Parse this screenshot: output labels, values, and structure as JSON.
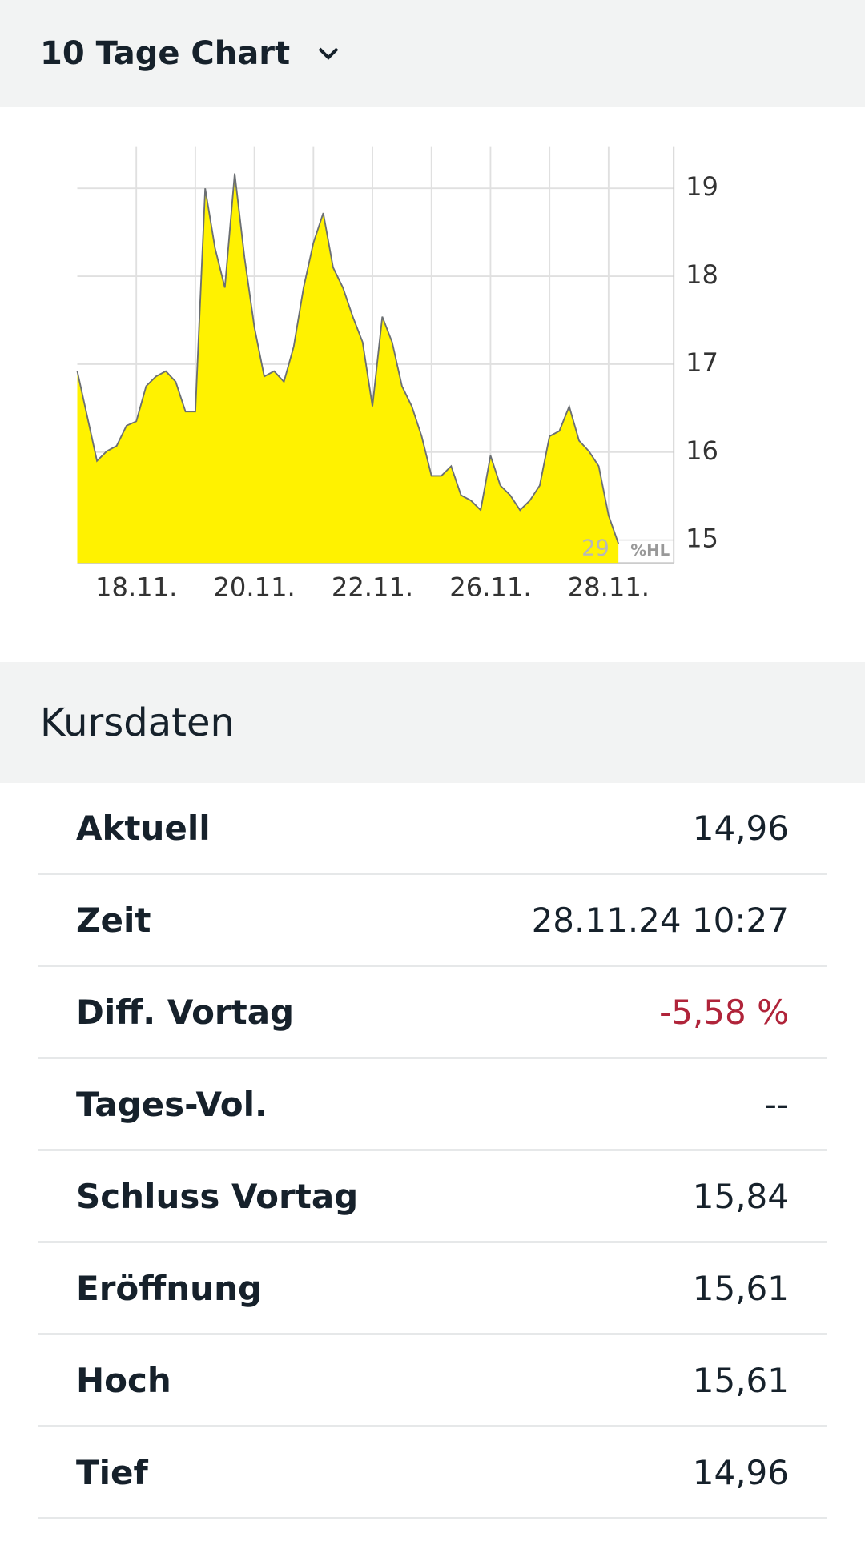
{
  "header": {
    "title": "10 Tage Chart"
  },
  "chart_data": {
    "type": "area",
    "categories": [
      null,
      null,
      null,
      null,
      null,
      null,
      "18.11.",
      null,
      null,
      null,
      null,
      null,
      null,
      null,
      null,
      null,
      null,
      null,
      "20.11.",
      null,
      null,
      null,
      null,
      null,
      null,
      null,
      null,
      null,
      null,
      null,
      "22.11.",
      null,
      null,
      null,
      null,
      null,
      null,
      null,
      null,
      null,
      null,
      null,
      "26.11.",
      null,
      null,
      null,
      null,
      null,
      null,
      null,
      null,
      null,
      null,
      null,
      "28.11.",
      null
    ],
    "values": [
      16.92,
      16.41,
      15.9,
      16.01,
      16.07,
      16.3,
      16.35,
      16.75,
      16.86,
      16.92,
      16.8,
      16.46,
      16.46,
      19.0,
      18.32,
      17.87,
      19.17,
      18.21,
      17.42,
      16.86,
      16.92,
      16.8,
      17.2,
      17.87,
      18.38,
      18.72,
      18.1,
      17.87,
      17.54,
      17.25,
      16.52,
      17.54,
      17.25,
      16.75,
      16.52,
      16.18,
      15.73,
      15.73,
      15.84,
      15.51,
      15.45,
      15.34,
      15.96,
      15.62,
      15.51,
      15.34,
      15.45,
      15.62,
      16.18,
      16.24,
      16.52,
      16.13,
      16.01,
      15.84,
      15.28,
      14.96
    ],
    "color": "#fff200",
    "edge_color": "#6b6f73",
    "ylim": [
      14.74,
      19.47
    ],
    "yticks": [
      15,
      16,
      17,
      18,
      19
    ],
    "grid": true,
    "watermark": [
      "29",
      "%HL"
    ]
  },
  "table": {
    "title": "Kursdaten",
    "rows": [
      [
        "Aktuell",
        "14,96"
      ],
      [
        "Zeit",
        "28.11.24 10:27"
      ],
      [
        "Diff. Vortag",
        "-5,58 %"
      ],
      [
        "Tages-Vol.",
        "--"
      ],
      [
        "Schluss Vortag",
        "15,84"
      ],
      [
        "Eröffnung",
        "15,61"
      ],
      [
        "Hoch",
        "15,61"
      ],
      [
        "Tief",
        "14,96"
      ]
    ]
  }
}
